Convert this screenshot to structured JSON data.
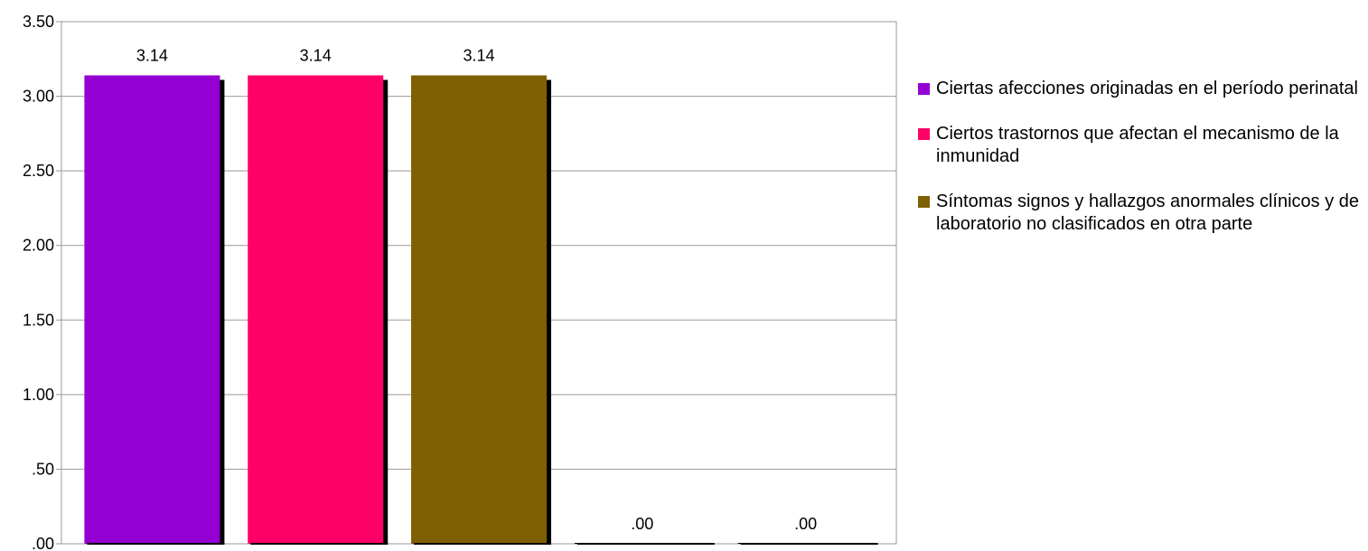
{
  "chart_data": {
    "type": "bar",
    "categories": [
      "",
      "",
      "",
      "",
      ""
    ],
    "series": [
      {
        "name": "Ciertas afecciones originadas en el período perinatal",
        "color": "#9400D3"
      },
      {
        "name": "Ciertos trastornos que afectan el mecanismo de la inmunidad",
        "color": "#FF0066"
      },
      {
        "name": "Síntomas signos y hallazgos anormales clínicos y de laboratorio no clasificados en otra parte",
        "color": "#7F6000"
      }
    ],
    "values": [
      3.14,
      3.14,
      3.14,
      0.0,
      0.0
    ],
    "value_labels": [
      "3.14",
      "3.14",
      "3.14",
      ".00",
      ".00"
    ],
    "bar_colors": [
      "#9400D3",
      "#FF0066",
      "#7F6000",
      "#000000",
      "#000000"
    ],
    "y_ticks": [
      {
        "value": 0.0,
        "label": ".00"
      },
      {
        "value": 0.5,
        "label": ".50"
      },
      {
        "value": 1.0,
        "label": "1.00"
      },
      {
        "value": 1.5,
        "label": "1.50"
      },
      {
        "value": 2.0,
        "label": "2.00"
      },
      {
        "value": 2.5,
        "label": "2.50"
      },
      {
        "value": 3.0,
        "label": "3.00"
      },
      {
        "value": 3.5,
        "label": "3.50"
      }
    ],
    "ylim": [
      0,
      3.5
    ],
    "grid": true,
    "legend_position": "right",
    "title": "",
    "xlabel": "",
    "ylabel": ""
  }
}
